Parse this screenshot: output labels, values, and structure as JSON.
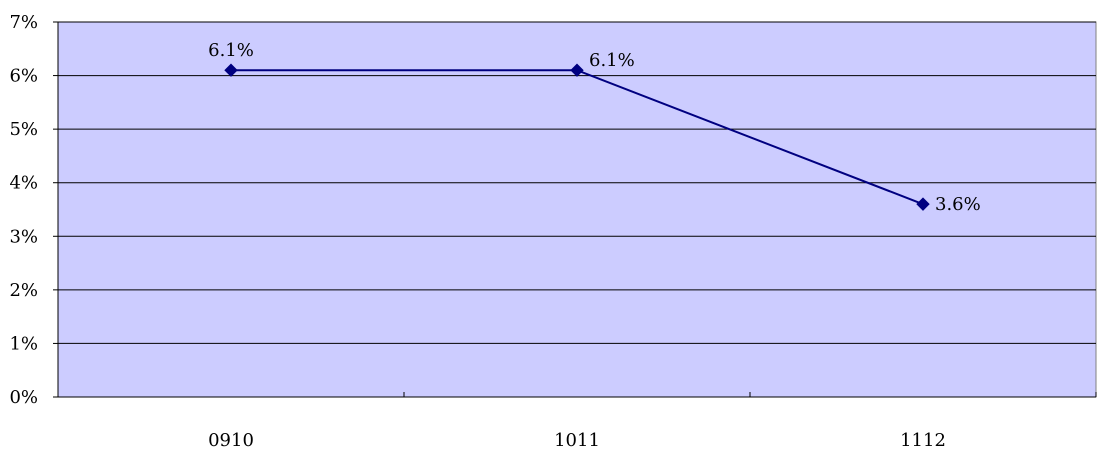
{
  "chart_data": {
    "type": "line",
    "categories": [
      "0910",
      "1011",
      "1112"
    ],
    "series": [
      {
        "values": [
          6.1,
          6.1,
          3.6
        ]
      }
    ],
    "data_labels": [
      "6.1%",
      "6.1%",
      "3.6%"
    ],
    "ylim": [
      0,
      7
    ],
    "y_ticks": [
      {
        "value": 0,
        "label": "0%"
      },
      {
        "value": 1,
        "label": "1%"
      },
      {
        "value": 2,
        "label": "2%"
      },
      {
        "value": 3,
        "label": "3%"
      },
      {
        "value": 4,
        "label": "4%"
      },
      {
        "value": 5,
        "label": "5%"
      },
      {
        "value": 6,
        "label": "6%"
      },
      {
        "value": 7,
        "label": "7%"
      }
    ],
    "title": "",
    "xlabel": "",
    "ylabel": "",
    "grid": true,
    "legend": "none",
    "colors": {
      "plot_background": "#ccccff",
      "line": "#000080",
      "marker": "#000080",
      "gridline": "#000000"
    }
  }
}
